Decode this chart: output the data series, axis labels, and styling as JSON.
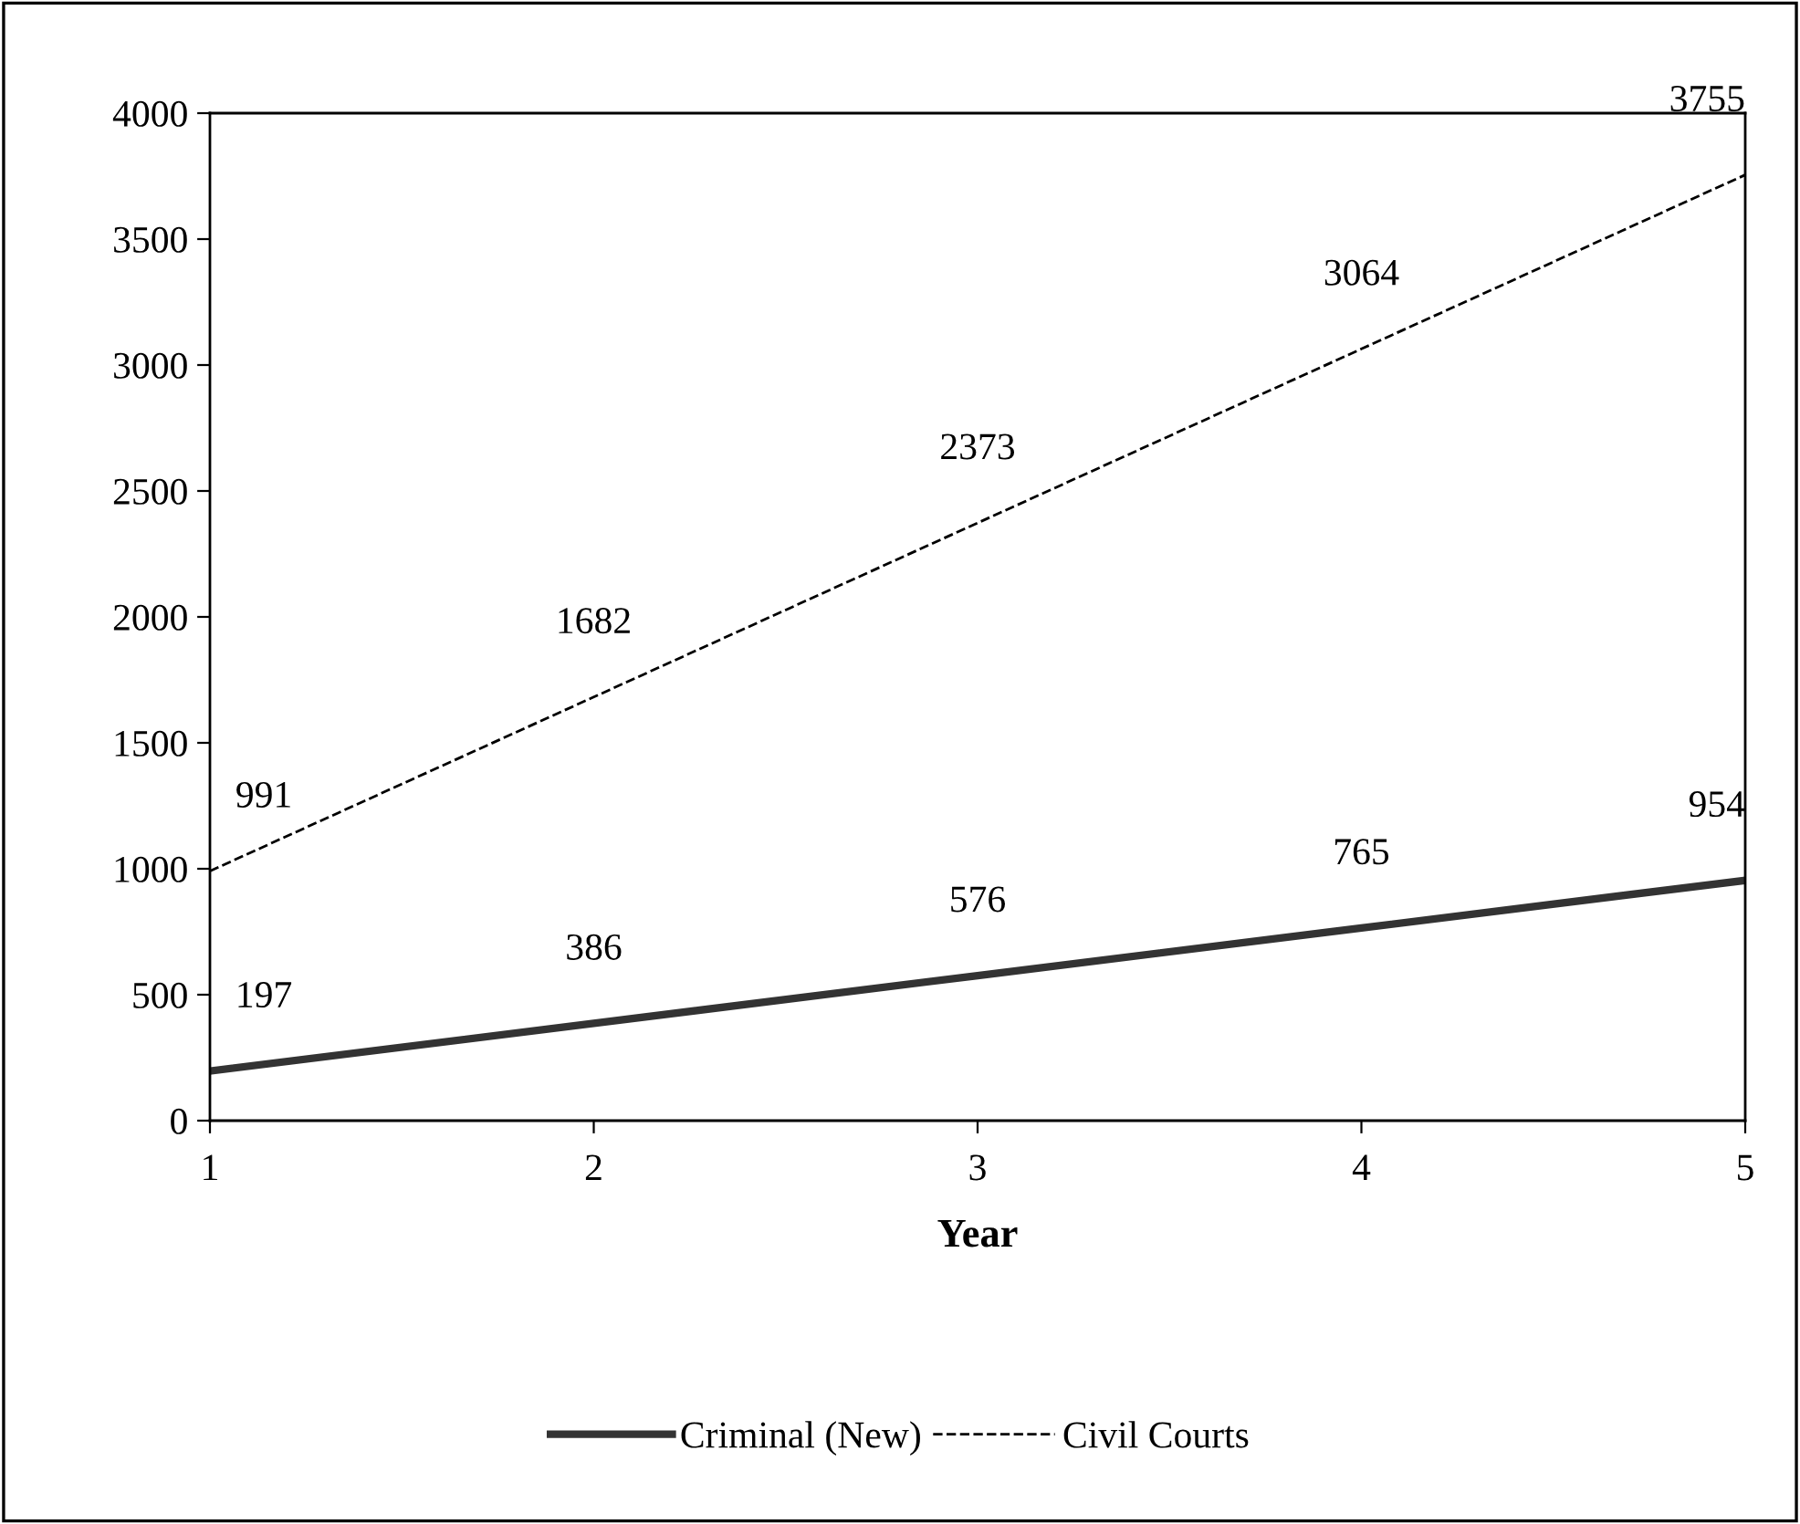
{
  "chart_data": {
    "type": "line",
    "xlabel": "Year",
    "x": [
      1,
      2,
      3,
      4,
      5
    ],
    "series": [
      {
        "name": "Criminal (New)",
        "color": "#333333",
        "line_style": "solid",
        "values": [
          197,
          386,
          576,
          765,
          954
        ]
      },
      {
        "name": "Civil Courts",
        "color": "#000000",
        "line_style": "dashed",
        "values": [
          991,
          1682,
          2373,
          3064,
          3755
        ]
      }
    ],
    "xlim": [
      1,
      5
    ],
    "xticks": [
      1,
      2,
      3,
      4,
      5
    ],
    "ylim": [
      0,
      4000
    ],
    "yticks": [
      0,
      500,
      1000,
      1500,
      2000,
      2500,
      3000,
      3500,
      4000
    ],
    "data_labels": true,
    "grid": false,
    "legend": "bottom",
    "marker": "none"
  }
}
